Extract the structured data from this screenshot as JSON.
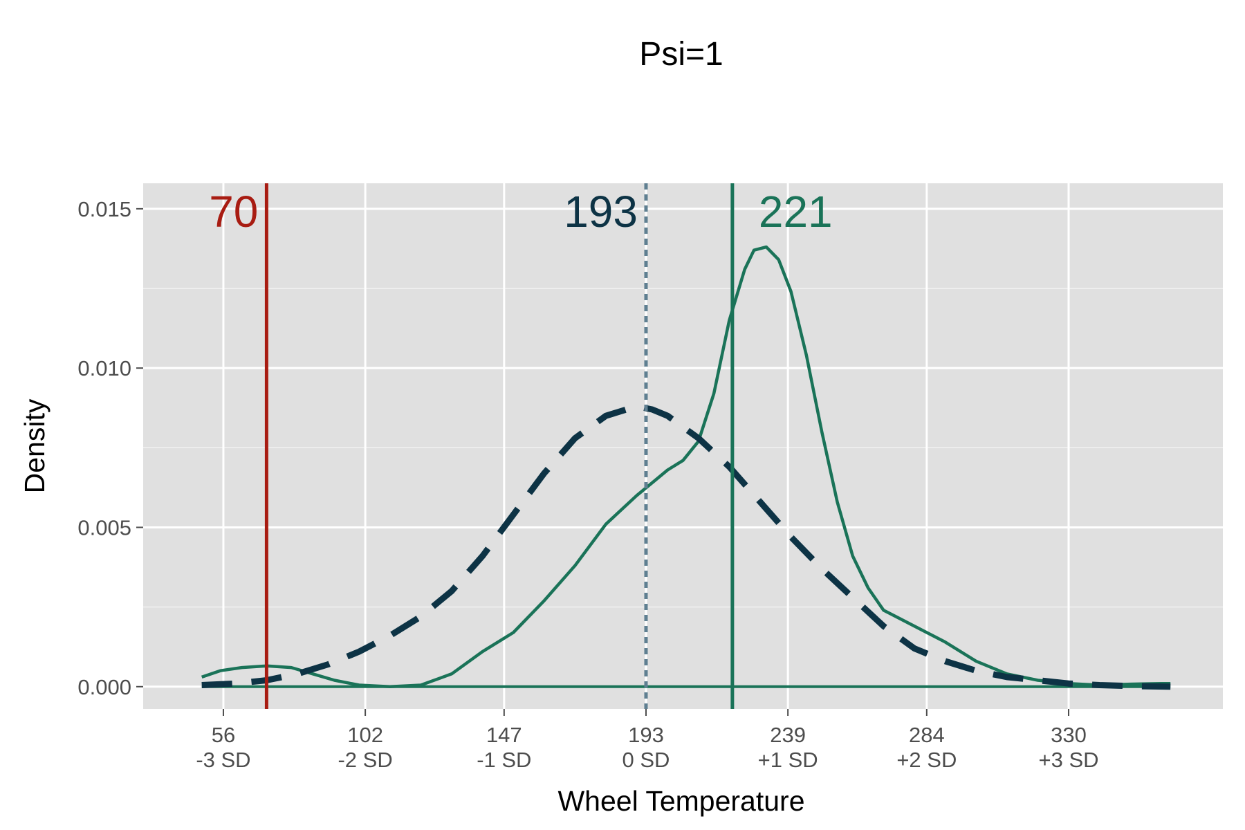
{
  "chart_data": {
    "type": "line",
    "title": "Psi=1",
    "xlabel": "Wheel Temperature",
    "ylabel": "Density",
    "xlim": [
      30,
      380
    ],
    "ylim": [
      -0.0007,
      0.0158
    ],
    "grid": true,
    "legend": "none",
    "x_ticks": [
      {
        "value": 56,
        "label": "56",
        "sublabel": "-3 SD"
      },
      {
        "value": 102,
        "label": "102",
        "sublabel": "-2 SD"
      },
      {
        "value": 147,
        "label": "147",
        "sublabel": "-1 SD"
      },
      {
        "value": 193,
        "label": "193",
        "sublabel": "0 SD"
      },
      {
        "value": 239,
        "label": "239",
        "sublabel": "+1 SD"
      },
      {
        "value": 284,
        "label": "284",
        "sublabel": "+2 SD"
      },
      {
        "value": 330,
        "label": "330",
        "sublabel": "+3 SD"
      }
    ],
    "y_ticks": [
      {
        "value": 0.0,
        "label": "0.000"
      },
      {
        "value": 0.005,
        "label": "0.005"
      },
      {
        "value": 0.01,
        "label": "0.010"
      },
      {
        "value": 0.015,
        "label": "0.015"
      }
    ],
    "series": [
      {
        "style": "solid",
        "color": "#1a7358",
        "x": [
          49,
          55,
          62,
          70,
          78,
          85,
          92,
          100,
          110,
          120,
          130,
          140,
          150,
          160,
          170,
          180,
          190,
          195,
          200,
          205,
          210,
          215,
          220,
          225,
          228,
          232,
          236,
          240,
          245,
          250,
          255,
          260,
          265,
          270,
          280,
          290,
          300,
          310,
          320,
          330,
          340,
          350,
          360,
          363
        ],
        "y": [
          0.0003,
          0.0005,
          0.0006,
          0.00065,
          0.0006,
          0.0004,
          0.0002,
          5e-05,
          0.0,
          5e-05,
          0.0004,
          0.0011,
          0.0017,
          0.0027,
          0.0038,
          0.0051,
          0.006,
          0.0064,
          0.0068,
          0.0071,
          0.0077,
          0.0092,
          0.0115,
          0.0131,
          0.0137,
          0.0138,
          0.0134,
          0.0124,
          0.0104,
          0.008,
          0.0058,
          0.0041,
          0.0031,
          0.0024,
          0.0019,
          0.0014,
          0.0008,
          0.0004,
          0.0002,
          0.0001,
          5e-05,
          8e-05,
          0.0001,
          0.0001
        ]
      },
      {
        "style": "dashed",
        "color": "#0d3345",
        "x": [
          49,
          60,
          70,
          80,
          90,
          100,
          110,
          120,
          130,
          140,
          150,
          160,
          170,
          180,
          190,
          195,
          200,
          210,
          220,
          230,
          240,
          250,
          260,
          270,
          280,
          290,
          300,
          310,
          320,
          330,
          340,
          350,
          363
        ],
        "y": [
          5e-05,
          0.0001,
          0.0002,
          0.0004,
          0.0007,
          0.0011,
          0.0016,
          0.0022,
          0.003,
          0.0041,
          0.0054,
          0.0067,
          0.0078,
          0.0085,
          0.0088,
          0.0087,
          0.0085,
          0.0078,
          0.0069,
          0.0058,
          0.0047,
          0.0037,
          0.0028,
          0.0019,
          0.0012,
          0.0008,
          0.0005,
          0.0003,
          0.0002,
          0.0001,
          5e-05,
          2e-05,
          0.0
        ]
      }
    ],
    "baseline": {
      "y": 0,
      "from": 49,
      "to": 363,
      "color": "#1a7358"
    },
    "reference_lines": [
      {
        "x": 70,
        "label": "70",
        "color": "#a81c12",
        "style": "solid"
      },
      {
        "x": 193,
        "label": "193",
        "color": "#0d3345",
        "line_color": "#5f7f91",
        "style": "dotted"
      },
      {
        "x": 221,
        "label": "221",
        "color": "#1a7358",
        "style": "solid"
      }
    ]
  }
}
